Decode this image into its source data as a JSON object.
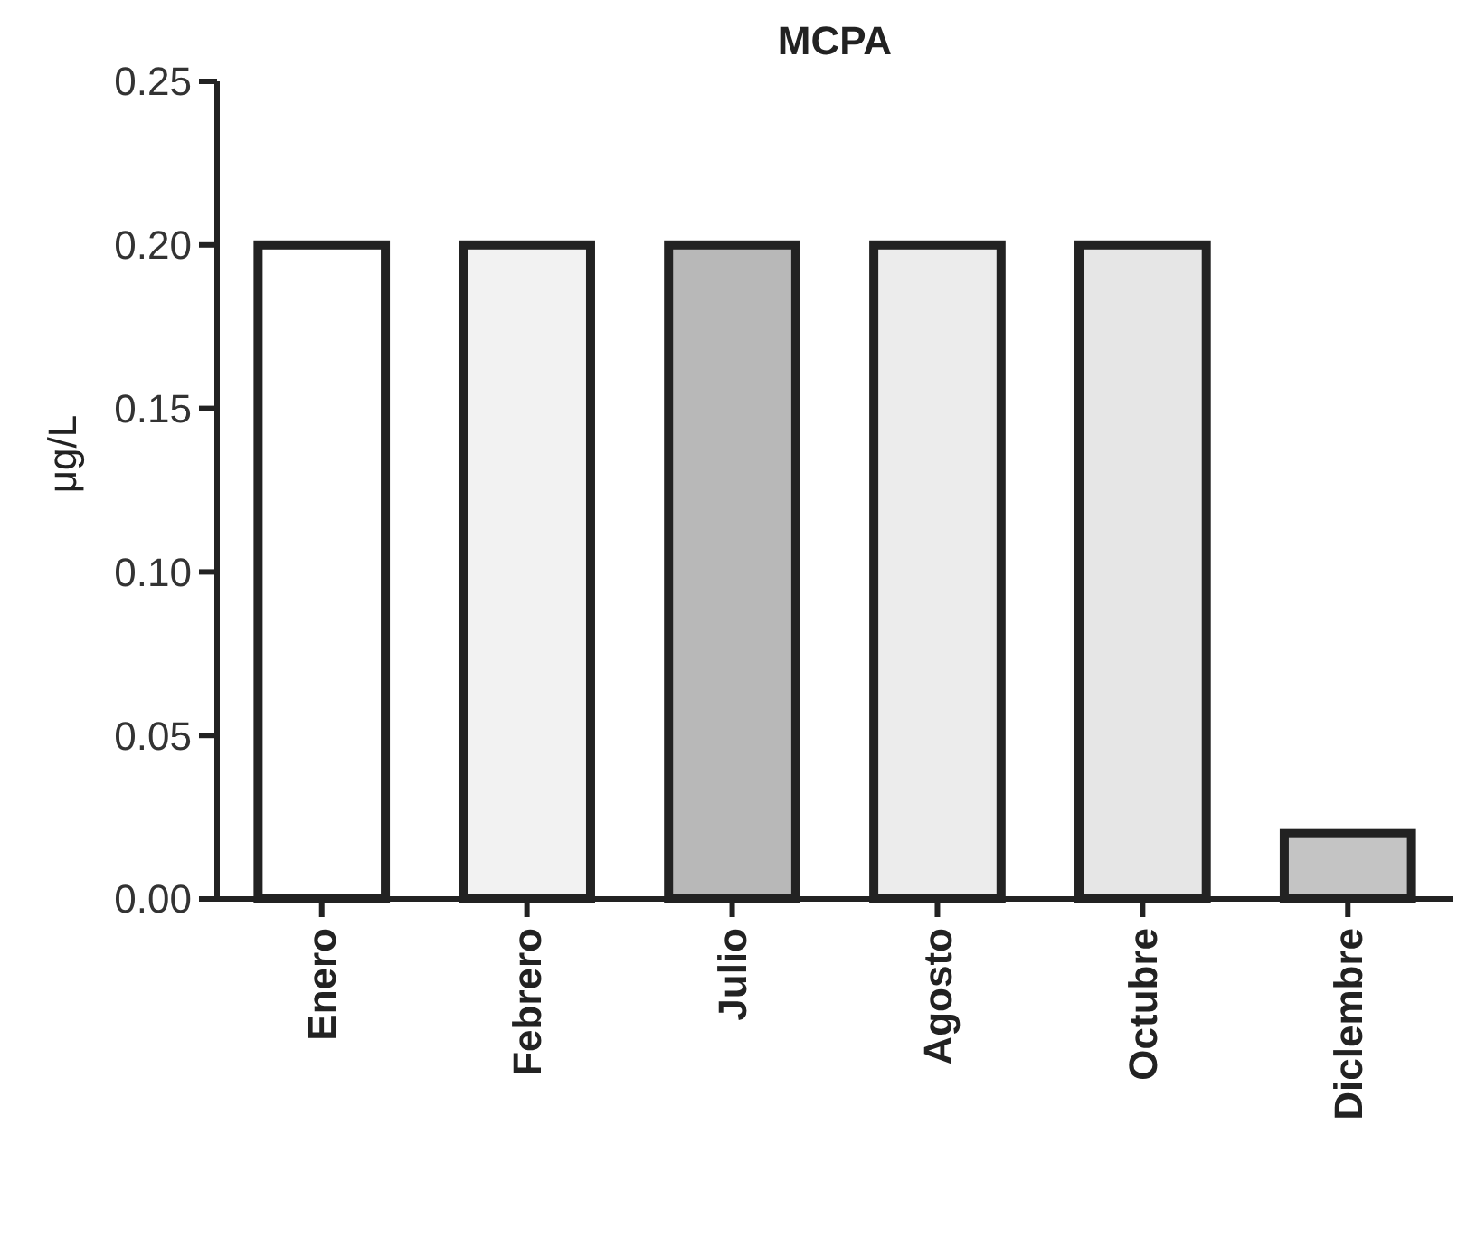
{
  "chart_data": {
    "type": "bar",
    "title": "MCPA",
    "ylabel": "μg/L",
    "categories": [
      "Enero",
      "Febrero",
      "Julio",
      "Agosto",
      "Octubre",
      "Diclembre"
    ],
    "values": [
      0.2,
      0.2,
      0.2,
      0.2,
      0.2,
      0.02
    ],
    "colors": [
      "#ffffff",
      "#f2f2f2",
      "#b8b8b8",
      "#ececec",
      "#e6e6e6",
      "#c4c4c4"
    ],
    "ylim": [
      0,
      0.25
    ],
    "yticks": [
      {
        "value": 0,
        "label": "0.00"
      },
      {
        "value": 0.05,
        "label": "0.05"
      },
      {
        "value": 0.1,
        "label": "0.10"
      },
      {
        "value": 0.15,
        "label": "0.15"
      },
      {
        "value": 0.2,
        "label": "0.20"
      },
      {
        "value": 0.25,
        "label": "0.25"
      }
    ],
    "grid": false
  }
}
